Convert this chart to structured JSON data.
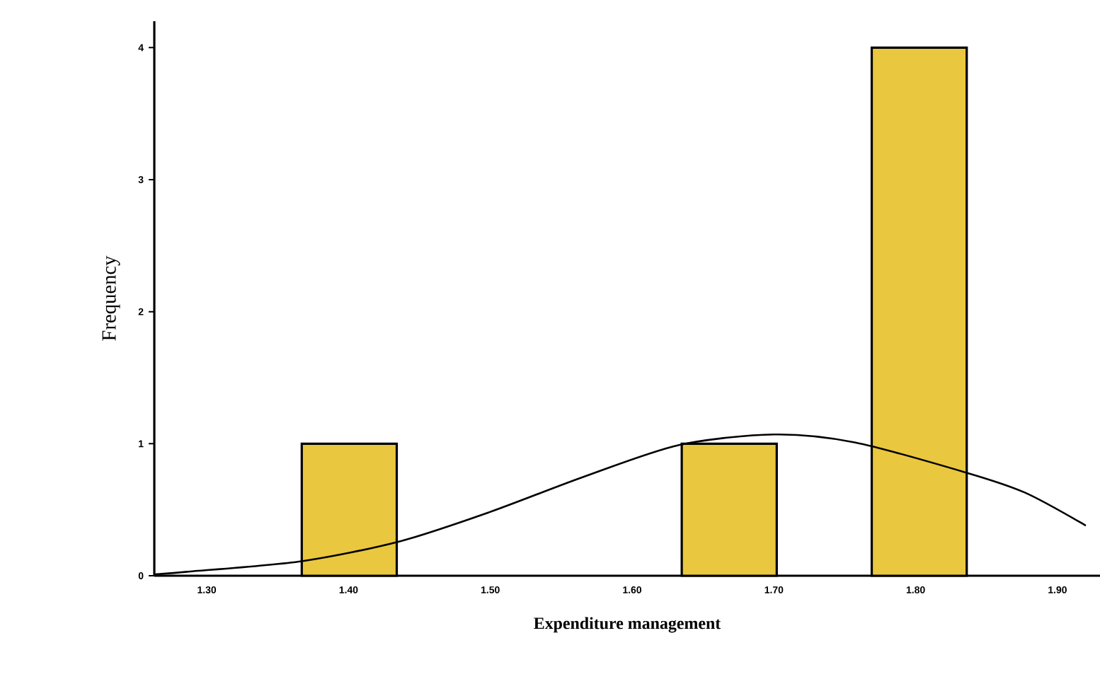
{
  "chart_data": {
    "type": "histogram",
    "xlabel": "Expenditure management",
    "ylabel": "Frequency",
    "bins": [
      1.367,
      1.434,
      1.501,
      1.568,
      1.635,
      1.702,
      1.769,
      1.836
    ],
    "values": [
      1,
      0,
      0,
      0,
      1,
      0,
      4
    ],
    "color": "#e9c73e",
    "series": [
      {
        "type": "line",
        "color": "#000000",
        "x": [
          1.263,
          1.286,
          1.367,
          1.436,
          1.499,
          1.566,
          1.633,
          1.7,
          1.757,
          1.836,
          1.877,
          1.92
        ],
        "values": [
          0.01,
          0.03,
          0.11,
          0.26,
          0.48,
          0.75,
          0.99,
          1.07,
          1.01,
          0.78,
          0.63,
          0.38
        ]
      }
    ],
    "xlim": [
      1.263,
      1.93
    ],
    "ylim": [
      0,
      4.2
    ],
    "xticks": [
      {
        "value": 1.3,
        "label": "1.30"
      },
      {
        "value": 1.4,
        "label": "1.40"
      },
      {
        "value": 1.5,
        "label": "1.50"
      },
      {
        "value": 1.6,
        "label": "1.60"
      },
      {
        "value": 1.7,
        "label": "1.70"
      },
      {
        "value": 1.8,
        "label": "1.80"
      },
      {
        "value": 1.9,
        "label": "1.90"
      }
    ],
    "yticks": [
      0,
      1,
      2,
      3,
      4
    ],
    "grid": false
  }
}
